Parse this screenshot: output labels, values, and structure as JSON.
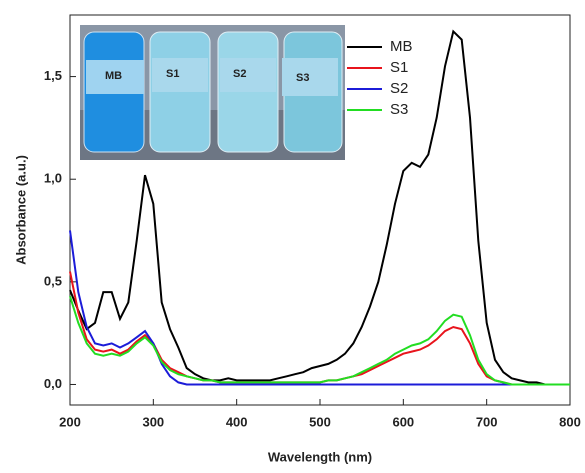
{
  "chart_data": {
    "type": "line",
    "xlabel": "Wavelength (nm)",
    "ylabel": "Absorbance  (a.u.)",
    "x": [
      200,
      210,
      220,
      230,
      240,
      250,
      260,
      270,
      280,
      290,
      300,
      310,
      320,
      330,
      340,
      350,
      360,
      370,
      380,
      390,
      400,
      410,
      420,
      430,
      440,
      450,
      460,
      470,
      480,
      490,
      500,
      510,
      520,
      530,
      540,
      550,
      560,
      570,
      580,
      590,
      600,
      610,
      620,
      630,
      640,
      650,
      660,
      670,
      680,
      690,
      700,
      710,
      720,
      730,
      740,
      750,
      760,
      770,
      780,
      790,
      800
    ],
    "series": [
      {
        "name": "MB",
        "color": "#000000",
        "values": [
          0.46,
          0.36,
          0.27,
          0.3,
          0.45,
          0.45,
          0.32,
          0.4,
          0.7,
          1.02,
          0.88,
          0.4,
          0.27,
          0.18,
          0.08,
          0.05,
          0.03,
          0.02,
          0.02,
          0.03,
          0.02,
          0.02,
          0.02,
          0.02,
          0.02,
          0.03,
          0.04,
          0.05,
          0.06,
          0.08,
          0.09,
          0.1,
          0.12,
          0.15,
          0.2,
          0.28,
          0.38,
          0.5,
          0.68,
          0.88,
          1.04,
          1.08,
          1.06,
          1.12,
          1.3,
          1.55,
          1.72,
          1.68,
          1.3,
          0.7,
          0.3,
          0.12,
          0.06,
          0.03,
          0.02,
          0.01,
          0.01,
          0,
          0,
          0,
          0
        ]
      },
      {
        "name": "S1",
        "color": "#e8141c",
        "values": [
          0.55,
          0.35,
          0.22,
          0.17,
          0.16,
          0.17,
          0.15,
          0.17,
          0.21,
          0.24,
          0.2,
          0.12,
          0.08,
          0.06,
          0.04,
          0.03,
          0.02,
          0.02,
          0.01,
          0.01,
          0.01,
          0.01,
          0.01,
          0.01,
          0.01,
          0.01,
          0.01,
          0.01,
          0.01,
          0.01,
          0.01,
          0.02,
          0.02,
          0.03,
          0.04,
          0.05,
          0.07,
          0.09,
          0.11,
          0.13,
          0.15,
          0.16,
          0.17,
          0.19,
          0.22,
          0.26,
          0.28,
          0.27,
          0.2,
          0.1,
          0.04,
          0.02,
          0.01,
          0,
          0,
          0,
          0,
          0,
          0,
          0,
          0
        ]
      },
      {
        "name": "S2",
        "color": "#1c1cd8",
        "values": [
          0.75,
          0.45,
          0.28,
          0.2,
          0.19,
          0.2,
          0.18,
          0.2,
          0.23,
          0.26,
          0.2,
          0.1,
          0.04,
          0.01,
          0,
          0,
          0,
          0,
          0,
          0,
          0,
          0,
          0,
          0,
          0,
          0,
          0,
          0,
          0,
          0,
          0,
          0,
          0,
          0,
          0,
          0,
          0,
          0,
          0,
          0,
          0,
          0,
          0,
          0,
          0,
          0,
          0,
          0,
          0,
          0,
          0,
          0,
          0,
          0,
          0,
          0,
          0,
          0,
          0,
          0,
          0
        ]
      },
      {
        "name": "S3",
        "color": "#22dd22",
        "values": [
          0.43,
          0.3,
          0.2,
          0.15,
          0.14,
          0.15,
          0.14,
          0.16,
          0.2,
          0.23,
          0.19,
          0.11,
          0.07,
          0.05,
          0.04,
          0.03,
          0.02,
          0.02,
          0.01,
          0.01,
          0.01,
          0.01,
          0.01,
          0.01,
          0.01,
          0.01,
          0.01,
          0.01,
          0.01,
          0.01,
          0.01,
          0.02,
          0.02,
          0.03,
          0.04,
          0.06,
          0.08,
          0.1,
          0.12,
          0.15,
          0.17,
          0.19,
          0.2,
          0.22,
          0.26,
          0.31,
          0.34,
          0.33,
          0.24,
          0.12,
          0.05,
          0.02,
          0.01,
          0,
          0,
          0,
          0,
          0,
          0,
          0,
          0
        ]
      }
    ],
    "xlim": [
      200,
      800
    ],
    "xticks": [
      200,
      300,
      400,
      500,
      600,
      700,
      800
    ],
    "ylim": [
      -0.1,
      1.8
    ],
    "yticks": [
      {
        "value": 0,
        "label": "0,0"
      },
      {
        "value": 0.5,
        "label": "0,5"
      },
      {
        "value": 1,
        "label": "1,0"
      },
      {
        "value": 1.5,
        "label": "1,5"
      }
    ]
  },
  "inset": {
    "labels": [
      "MB",
      "S1",
      "S2",
      "S3"
    ]
  }
}
